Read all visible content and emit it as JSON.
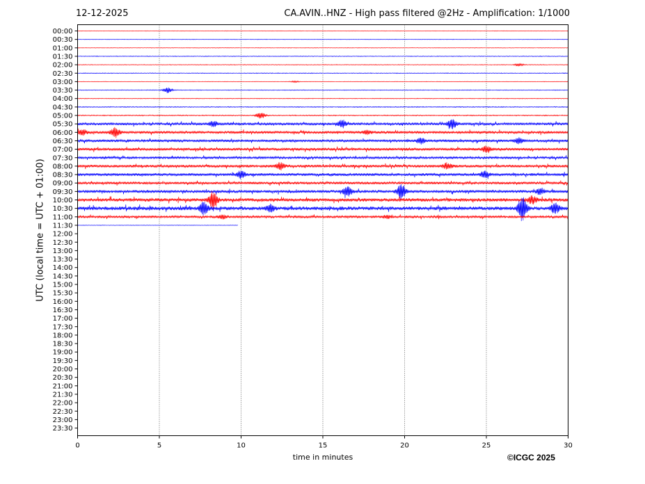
{
  "header": {
    "date": "12-12-2025",
    "title": "CA.AVIN..HNZ - High pass filtered @2Hz - Amplification: 1/1000"
  },
  "footer": {
    "copyright": "©ICGC 2025"
  },
  "chart_data": {
    "type": "line",
    "xlabel": "time in minutes",
    "ylabel": "UTC (local time = UTC + 01:00)",
    "xlim": [
      0,
      30
    ],
    "xticks": [
      0,
      5,
      10,
      15,
      20,
      25,
      30
    ],
    "vertical_gridlines": [
      5,
      10,
      15,
      20,
      25
    ],
    "grid": "vertical dotted",
    "series_colors": [
      "#ff0000",
      "#0000ff"
    ],
    "row_labels": [
      "00:00",
      "00:30",
      "01:00",
      "01:30",
      "02:00",
      "02:30",
      "03:00",
      "03:30",
      "04:00",
      "04:30",
      "05:00",
      "05:30",
      "06:00",
      "06:30",
      "07:00",
      "07:30",
      "08:00",
      "08:30",
      "09:00",
      "09:30",
      "10:00",
      "10:30",
      "11:00",
      "11:30",
      "12:00",
      "12:30",
      "13:00",
      "13:30",
      "14:00",
      "14:30",
      "15:00",
      "15:30",
      "16:00",
      "16:30",
      "17:00",
      "17:30",
      "18:00",
      "18:30",
      "19:00",
      "19:30",
      "20:00",
      "20:30",
      "21:00",
      "21:30",
      "22:00",
      "22:30",
      "23:00",
      "23:30"
    ],
    "recorded_until": {
      "row": "11:30",
      "minute": 9.8
    },
    "noise_level": [
      0.3,
      0.3,
      0.3,
      0.4,
      0.4,
      0.4,
      0.3,
      0.4,
      0.4,
      0.5,
      0.6,
      1.5,
      1.6,
      1.5,
      1.6,
      1.4,
      1.6,
      1.6,
      1.5,
      1.7,
      2.0,
      2.2,
      1.4,
      0.3
    ],
    "events": [
      {
        "row": "02:00",
        "minute": 27.0,
        "amplitude": 2
      },
      {
        "row": "03:00",
        "minute": 13.3,
        "amplitude": 1
      },
      {
        "row": "03:30",
        "minute": 5.5,
        "amplitude": 4
      },
      {
        "row": "05:00",
        "minute": 11.2,
        "amplitude": 5
      },
      {
        "row": "05:30",
        "minute": 8.3,
        "amplitude": 4
      },
      {
        "row": "05:30",
        "minute": 16.2,
        "amplitude": 5
      },
      {
        "row": "05:30",
        "minute": 22.9,
        "amplitude": 7
      },
      {
        "row": "06:00",
        "minute": 0.3,
        "amplitude": 4
      },
      {
        "row": "06:00",
        "minute": 2.3,
        "amplitude": 7
      },
      {
        "row": "06:00",
        "minute": 17.7,
        "amplitude": 3
      },
      {
        "row": "06:30",
        "minute": 21.0,
        "amplitude": 4
      },
      {
        "row": "06:30",
        "minute": 27.0,
        "amplitude": 4
      },
      {
        "row": "07:00",
        "minute": 25.0,
        "amplitude": 4
      },
      {
        "row": "08:00",
        "minute": 12.4,
        "amplitude": 5
      },
      {
        "row": "08:00",
        "minute": 22.6,
        "amplitude": 4
      },
      {
        "row": "08:30",
        "minute": 10.0,
        "amplitude": 5
      },
      {
        "row": "08:30",
        "minute": 24.9,
        "amplitude": 5
      },
      {
        "row": "09:30",
        "minute": 16.5,
        "amplitude": 7
      },
      {
        "row": "09:30",
        "minute": 19.8,
        "amplitude": 11
      },
      {
        "row": "09:30",
        "minute": 28.3,
        "amplitude": 4
      },
      {
        "row": "10:00",
        "minute": 8.3,
        "amplitude": 13
      },
      {
        "row": "10:00",
        "minute": 27.8,
        "amplitude": 5
      },
      {
        "row": "10:30",
        "minute": 7.7,
        "amplitude": 9
      },
      {
        "row": "10:30",
        "minute": 11.8,
        "amplitude": 5
      },
      {
        "row": "10:30",
        "minute": 27.2,
        "amplitude": 17
      },
      {
        "row": "10:30",
        "minute": 29.2,
        "amplitude": 7
      },
      {
        "row": "11:00",
        "minute": 8.9,
        "amplitude": 3
      },
      {
        "row": "11:00",
        "minute": 18.9,
        "amplitude": 2
      }
    ]
  }
}
